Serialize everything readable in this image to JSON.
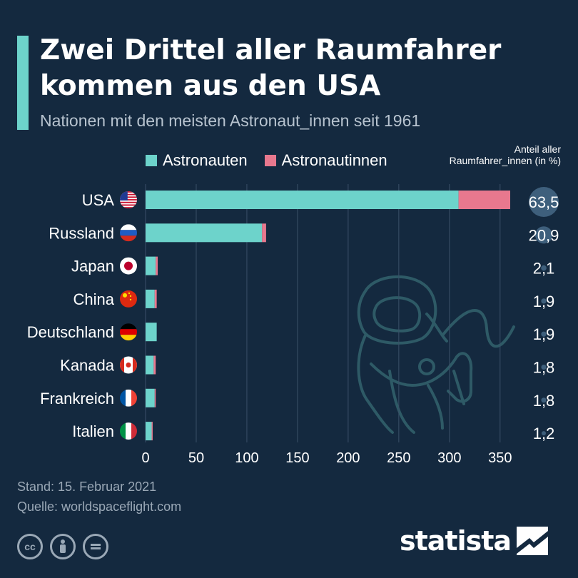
{
  "header": {
    "title": "Zwei Drittel aller Raumfahrer kommen aus den USA",
    "subtitle": "Nationen mit den meisten Astronaut_innen seit 1961"
  },
  "legend": {
    "astronauts": "Astronauten",
    "astronautinnen": "Astronautinnen",
    "share_header": "Anteil aller Raumfahrer_innen (in %)"
  },
  "colors": {
    "background": "#14293f",
    "astronauts": "#6dd3cb",
    "astronautinnen": "#e8788e",
    "grid": "#3b5068",
    "text": "#ffffff",
    "muted": "#9aa8b6"
  },
  "chart_data": {
    "type": "bar",
    "orientation": "horizontal",
    "stacked": true,
    "title": "Zwei Drittel aller Raumfahrer kommen aus den USA",
    "subtitle": "Nationen mit den meisten Astronaut_innen seit 1961",
    "categories": [
      "USA",
      "Russland",
      "Japan",
      "China",
      "Deutschland",
      "Kanada",
      "Frankreich",
      "Italien"
    ],
    "series": [
      {
        "name": "Astronauten",
        "values": [
          309,
          115,
          10,
          9,
          11,
          8,
          9,
          6
        ]
      },
      {
        "name": "Astronautinnen",
        "values": [
          51,
          4,
          2,
          2,
          0,
          2,
          1,
          1
        ]
      }
    ],
    "share_percent": [
      "63,5",
      "20,9",
      "2,1",
      "1,9",
      "1,9",
      "1,8",
      "1,8",
      "1,2"
    ],
    "share_values": [
      63.5,
      20.9,
      2.1,
      1.9,
      1.9,
      1.8,
      1.8,
      1.2
    ],
    "x_ticks": [
      "0",
      "50",
      "100",
      "150",
      "200",
      "250",
      "300",
      "350"
    ],
    "xlim": [
      0,
      360
    ],
    "grid": true,
    "legend_position": "top"
  },
  "footer": {
    "date": "Stand: 15. Februar 2021",
    "source": "Quelle: worldspaceflight.com",
    "brand": "statista"
  },
  "icons": {
    "cc": "cc-license-icon",
    "attribution": "attribution-person-icon",
    "noderivs": "no-derivatives-icon",
    "astronaut": "astronaut-illustration",
    "flags": [
      "usa-flag-icon",
      "russia-flag-icon",
      "japan-flag-icon",
      "china-flag-icon",
      "germany-flag-icon",
      "canada-flag-icon",
      "france-flag-icon",
      "italy-flag-icon"
    ]
  }
}
